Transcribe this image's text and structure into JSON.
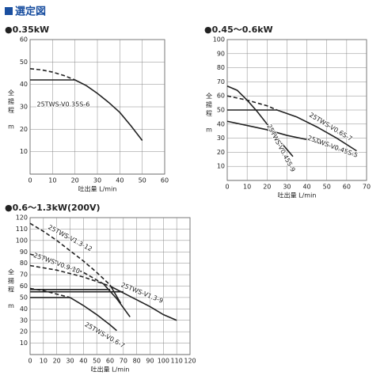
{
  "header": {
    "title": "選定図"
  },
  "chart_data": [
    {
      "type": "line",
      "title": "●0.35kW",
      "x_label": "吐出量 L/min",
      "y_label": "全揚程",
      "y_unit": "m",
      "xlim": [
        0,
        60
      ],
      "ylim": [
        0,
        60
      ],
      "xticks": [
        0,
        10,
        20,
        30,
        40,
        50,
        60
      ],
      "yticks": [
        10,
        20,
        30,
        40,
        50,
        60
      ],
      "grid": true,
      "series": [
        {
          "name": "25TWS-V0.35S-6",
          "color": "#222",
          "dashed": false,
          "x": [
            20,
            25,
            30,
            35,
            40,
            45,
            50
          ],
          "values": [
            42,
            39.5,
            36,
            32,
            27.5,
            21.5,
            15
          ]
        },
        {
          "color": "#222",
          "dashed": true,
          "x": [
            0,
            5,
            10,
            15,
            20
          ],
          "values": [
            47,
            46.5,
            45.5,
            44,
            42
          ]
        },
        {
          "color": "#222",
          "dashed": false,
          "x": [
            0,
            20
          ],
          "values": [
            42,
            42
          ]
        }
      ]
    },
    {
      "type": "line",
      "title": "●0.45～0.6kW",
      "x_label": "吐出量 L/min",
      "y_label": "全揚程",
      "y_unit": "m",
      "xlim": [
        0,
        70
      ],
      "ylim": [
        0,
        100
      ],
      "xticks": [
        0,
        10,
        20,
        30,
        40,
        50,
        60,
        70
      ],
      "yticks": [
        10,
        20,
        30,
        40,
        50,
        60,
        70,
        80,
        90,
        100
      ],
      "grid": true,
      "series": [
        {
          "name": "25TWS-V0.6S-7",
          "color": "#222",
          "dashed": false,
          "x": [
            25,
            35,
            45,
            55,
            65
          ],
          "values": [
            50,
            45,
            38,
            30,
            21
          ]
        },
        {
          "color": "#222",
          "dashed": true,
          "x": [
            0,
            10,
            20,
            25
          ],
          "values": [
            60,
            57,
            53,
            50
          ]
        },
        {
          "color": "#222",
          "dashed": false,
          "x": [
            0,
            25
          ],
          "values": [
            50,
            50
          ]
        },
        {
          "name": "25TWS-V0.45S-5",
          "color": "#222",
          "dashed": false,
          "x": [
            0,
            10,
            20,
            30,
            40,
            50,
            60,
            65
          ],
          "values": [
            42,
            39,
            36,
            32,
            29,
            25,
            20,
            17
          ]
        },
        {
          "name": "25TWS-V0.45S-9",
          "color": "#222",
          "dashed": false,
          "x": [
            0,
            5,
            10,
            15,
            20,
            25,
            30,
            33
          ],
          "values": [
            67,
            64,
            57,
            49,
            40,
            30,
            22,
            17
          ]
        }
      ]
    },
    {
      "type": "line",
      "title": "●0.6～1.3kW(200V)",
      "x_label": "吐出量 L/min",
      "y_label": "全揚程",
      "y_unit": "m",
      "xlim": [
        0,
        120
      ],
      "ylim": [
        0,
        120
      ],
      "xticks": [
        0,
        10,
        20,
        30,
        40,
        50,
        60,
        70,
        80,
        90,
        100,
        110,
        120
      ],
      "yticks": [
        10,
        20,
        30,
        40,
        50,
        60,
        70,
        80,
        90,
        100,
        110,
        120
      ],
      "grid": true,
      "series": [
        {
          "name": "25TWS-V1.3-12",
          "color": "#222",
          "dashed": true,
          "x": [
            0,
            10,
            20,
            30,
            40,
            50,
            60
          ],
          "values": [
            115,
            108,
            100,
            91,
            82,
            72,
            61
          ]
        },
        {
          "color": "#222",
          "dashed": false,
          "x": [
            60,
            64,
            68
          ],
          "values": [
            61,
            53,
            45
          ]
        },
        {
          "name": "25TWS-V0.9-10",
          "color": "#222",
          "dashed": true,
          "x": [
            0,
            20,
            40,
            55
          ],
          "values": [
            88,
            82,
            72,
            62
          ]
        },
        {
          "color": "#222",
          "dashed": false,
          "x": [
            55,
            65,
            75
          ],
          "values": [
            62,
            49,
            33
          ]
        },
        {
          "name": "25TWS-V1.3-9",
          "color": "#222",
          "dashed": true,
          "x": [
            0,
            20,
            40,
            60
          ],
          "values": [
            78,
            74,
            68,
            60
          ]
        },
        {
          "color": "#222",
          "dashed": false,
          "x": [
            60,
            70,
            80,
            90,
            100,
            110
          ],
          "values": [
            60,
            54,
            48,
            42,
            35,
            30
          ]
        },
        {
          "name": "25TWS-V0.6-7",
          "color": "#222",
          "dashed": true,
          "x": [
            0,
            10,
            20,
            30
          ],
          "values": [
            58,
            56,
            53,
            50
          ]
        },
        {
          "color": "#222",
          "dashed": false,
          "x": [
            30,
            40,
            50,
            60,
            65
          ],
          "values": [
            50,
            43,
            35,
            26,
            21
          ]
        },
        {
          "color": "#222",
          "dashed": false,
          "x": [
            0,
            60
          ],
          "values": [
            57,
            57
          ]
        },
        {
          "color": "#222",
          "dashed": false,
          "x": [
            0,
            70
          ],
          "values": [
            55,
            55
          ]
        },
        {
          "color": "#222",
          "dashed": false,
          "x": [
            0,
            30
          ],
          "values": [
            50,
            50
          ]
        }
      ]
    }
  ]
}
